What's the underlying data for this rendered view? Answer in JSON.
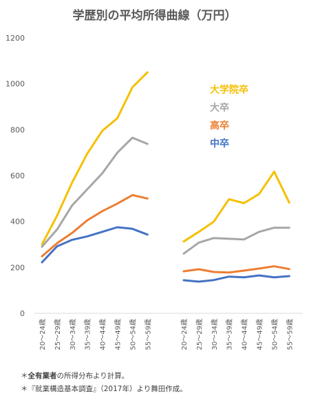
{
  "chart_data": {
    "type": "line",
    "title": "学歴別の平均所得曲線（万円）",
    "ylim": [
      0,
      1200
    ],
    "yticks": [
      0,
      200,
      400,
      600,
      800,
      1000,
      1200
    ],
    "grid": false,
    "legend_position": "top-right",
    "panels": [
      {
        "categories": [
          "20～24歳",
          "25～29歳",
          "30～34歳",
          "35～39歳",
          "40～44歳",
          "45～49歳",
          "50～54歳",
          "55～59歳"
        ],
        "series": [
          {
            "name": "大学院卒",
            "color": "#f5c000",
            "values": [
              300,
              425,
              570,
              695,
              795,
              850,
              985,
              1050
            ]
          },
          {
            "name": "大卒",
            "color": "#a6a6a6",
            "values": [
              290,
              365,
              470,
              540,
              610,
              700,
              765,
              738
            ]
          },
          {
            "name": "高卒",
            "color": "#ed7d31",
            "values": [
              248,
              305,
              350,
              405,
              445,
              478,
              515,
              500
            ]
          },
          {
            "name": "中卒",
            "color": "#4472c4",
            "values": [
              222,
              292,
              320,
              335,
              355,
              375,
              368,
              343
            ]
          }
        ]
      },
      {
        "categories": [
          "20～24歳",
          "25～29歳",
          "30～34歳",
          "35～39歳",
          "40～44歳",
          "45～49歳",
          "50～54歳",
          "55～59歳"
        ],
        "series": [
          {
            "name": "大学院卒",
            "color": "#f5c000",
            "values": [
              313,
              355,
              400,
              497,
              480,
              520,
              617,
              482
            ]
          },
          {
            "name": "大卒",
            "color": "#a6a6a6",
            "values": [
              260,
              308,
              328,
              325,
              322,
              355,
              373,
              373
            ]
          },
          {
            "name": "高卒",
            "color": "#ed7d31",
            "values": [
              183,
              192,
              180,
              178,
              186,
              195,
              205,
              193
            ]
          },
          {
            "name": "中卒",
            "color": "#4472c4",
            "values": [
              144,
              138,
              145,
              160,
              157,
              165,
              157,
              162
            ]
          }
        ]
      }
    ]
  },
  "notes": {
    "note1_prefix": "＊",
    "note1_bold": "全有業者",
    "note1_rest": "の所得分布より計算。",
    "note2": "＊『就業構造基本調査』（2017年）より舞田作成。"
  }
}
